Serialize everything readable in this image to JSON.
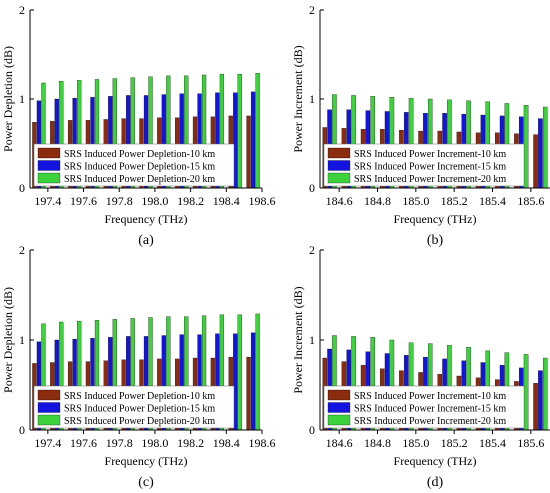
{
  "colors": {
    "km10": "#8B2C0E",
    "km15": "#1414E0",
    "km20": "#3CD23C"
  },
  "chart_data": [
    {
      "id": "a",
      "panel_label": "(a)",
      "type": "bar",
      "xlabel": "Frequency (THz)",
      "ylabel": "Power Depletion (dB)",
      "ylim": [
        0,
        2
      ],
      "yticks": [
        "0",
        "1",
        "2"
      ],
      "xticks": [
        "197.4",
        "197.6",
        "197.8",
        "198.0",
        "198.2",
        "198.4",
        "198.6"
      ],
      "xlim": [
        197.3,
        198.6
      ],
      "x": [
        197.35,
        197.45,
        197.55,
        197.65,
        197.75,
        197.85,
        197.95,
        198.05,
        198.15,
        198.25,
        198.35,
        198.45,
        198.55
      ],
      "legend_position": "lower-left",
      "series": [
        {
          "name": "SRS Induced Power Depletion-10 km",
          "color_key": "km10",
          "values": [
            0.74,
            0.75,
            0.76,
            0.76,
            0.77,
            0.78,
            0.78,
            0.79,
            0.79,
            0.8,
            0.8,
            0.81,
            0.81
          ]
        },
        {
          "name": "SRS Induced Power Depletion-15 km",
          "color_key": "km15",
          "values": [
            0.98,
            1.0,
            1.01,
            1.02,
            1.03,
            1.04,
            1.04,
            1.05,
            1.06,
            1.06,
            1.07,
            1.07,
            1.08
          ]
        },
        {
          "name": "SRS Induced Power Depletion-20 km",
          "color_key": "km20",
          "values": [
            1.18,
            1.2,
            1.21,
            1.22,
            1.23,
            1.24,
            1.25,
            1.26,
            1.26,
            1.27,
            1.28,
            1.28,
            1.29
          ]
        }
      ]
    },
    {
      "id": "b",
      "panel_label": "(b)",
      "type": "bar",
      "xlabel": "Frequency (THz)",
      "ylabel": "Power Increment (dB)",
      "ylim": [
        0,
        2
      ],
      "yticks": [
        "0",
        "1",
        "2"
      ],
      "xticks": [
        "184.6",
        "184.8",
        "185.0",
        "185.2",
        "185.4",
        "185.6"
      ],
      "xlim": [
        184.5,
        185.7
      ],
      "x": [
        184.55,
        184.65,
        184.75,
        184.85,
        184.95,
        185.05,
        185.15,
        185.25,
        185.35,
        185.45,
        185.55,
        185.65
      ],
      "legend_position": "lower-left",
      "series": [
        {
          "name": "SRS Induced Power Increment-10 km",
          "color_key": "km10",
          "values": [
            0.68,
            0.67,
            0.66,
            0.66,
            0.65,
            0.64,
            0.64,
            0.63,
            0.62,
            0.62,
            0.61,
            0.6
          ]
        },
        {
          "name": "SRS Induced Power Increment-15 km",
          "color_key": "km15",
          "values": [
            0.88,
            0.88,
            0.87,
            0.86,
            0.85,
            0.84,
            0.84,
            0.83,
            0.82,
            0.81,
            0.8,
            0.78
          ]
        },
        {
          "name": "SRS Induced Power Increment-20 km",
          "color_key": "km20",
          "values": [
            1.05,
            1.04,
            1.03,
            1.02,
            1.01,
            1.0,
            0.99,
            0.98,
            0.97,
            0.95,
            0.93,
            0.91
          ]
        }
      ]
    },
    {
      "id": "c",
      "panel_label": "(c)",
      "type": "bar",
      "xlabel": "Frequency (THz)",
      "ylabel": "Power Depletion (dB)",
      "ylim": [
        0,
        2
      ],
      "yticks": [
        "0",
        "1",
        "2"
      ],
      "xticks": [
        "197.4",
        "197.6",
        "197.8",
        "198.0",
        "198.2",
        "198.4",
        "198.6"
      ],
      "xlim": [
        197.3,
        198.6
      ],
      "x": [
        197.35,
        197.45,
        197.55,
        197.65,
        197.75,
        197.85,
        197.95,
        198.05,
        198.15,
        198.25,
        198.35,
        198.45,
        198.55
      ],
      "legend_position": "lower-left",
      "series": [
        {
          "name": "SRS Induced Power Depletion-10 km",
          "color_key": "km10",
          "values": [
            0.74,
            0.75,
            0.76,
            0.76,
            0.77,
            0.78,
            0.78,
            0.79,
            0.79,
            0.8,
            0.8,
            0.81,
            0.81
          ]
        },
        {
          "name": "SRS Induced Power Depletion-15 km",
          "color_key": "km15",
          "values": [
            0.98,
            1.0,
            1.01,
            1.02,
            1.03,
            1.04,
            1.04,
            1.05,
            1.06,
            1.06,
            1.07,
            1.07,
            1.08
          ]
        },
        {
          "name": "SRS Induced Power Depletion-20 km",
          "color_key": "km20",
          "values": [
            1.18,
            1.2,
            1.21,
            1.22,
            1.23,
            1.24,
            1.25,
            1.26,
            1.26,
            1.27,
            1.28,
            1.28,
            1.29
          ]
        }
      ]
    },
    {
      "id": "d",
      "panel_label": "(d)",
      "type": "bar",
      "xlabel": "Frequency (THz)",
      "ylabel": "Power Increment (dB)",
      "ylim": [
        0,
        2
      ],
      "yticks": [
        "0",
        "1",
        "2"
      ],
      "xticks": [
        "184.6",
        "184.8",
        "185.0",
        "185.2",
        "185.4",
        "185.6"
      ],
      "xlim": [
        184.5,
        185.7
      ],
      "x": [
        184.55,
        184.65,
        184.75,
        184.85,
        184.95,
        185.05,
        185.15,
        185.25,
        185.35,
        185.45,
        185.55,
        185.65
      ],
      "legend_position": "lower-left",
      "series": [
        {
          "name": "SRS Induced Power Increment-10 km",
          "color_key": "km10",
          "values": [
            0.8,
            0.76,
            0.72,
            0.68,
            0.66,
            0.64,
            0.62,
            0.6,
            0.58,
            0.56,
            0.54,
            0.52
          ]
        },
        {
          "name": "SRS Induced Power Increment-15 km",
          "color_key": "km15",
          "values": [
            0.9,
            0.89,
            0.87,
            0.85,
            0.83,
            0.81,
            0.79,
            0.77,
            0.75,
            0.72,
            0.69,
            0.66
          ]
        },
        {
          "name": "SRS Induced Power Increment-20 km",
          "color_key": "km20",
          "values": [
            1.05,
            1.04,
            1.03,
            1.0,
            0.97,
            0.96,
            0.94,
            0.92,
            0.88,
            0.86,
            0.84,
            0.8
          ]
        }
      ]
    }
  ]
}
